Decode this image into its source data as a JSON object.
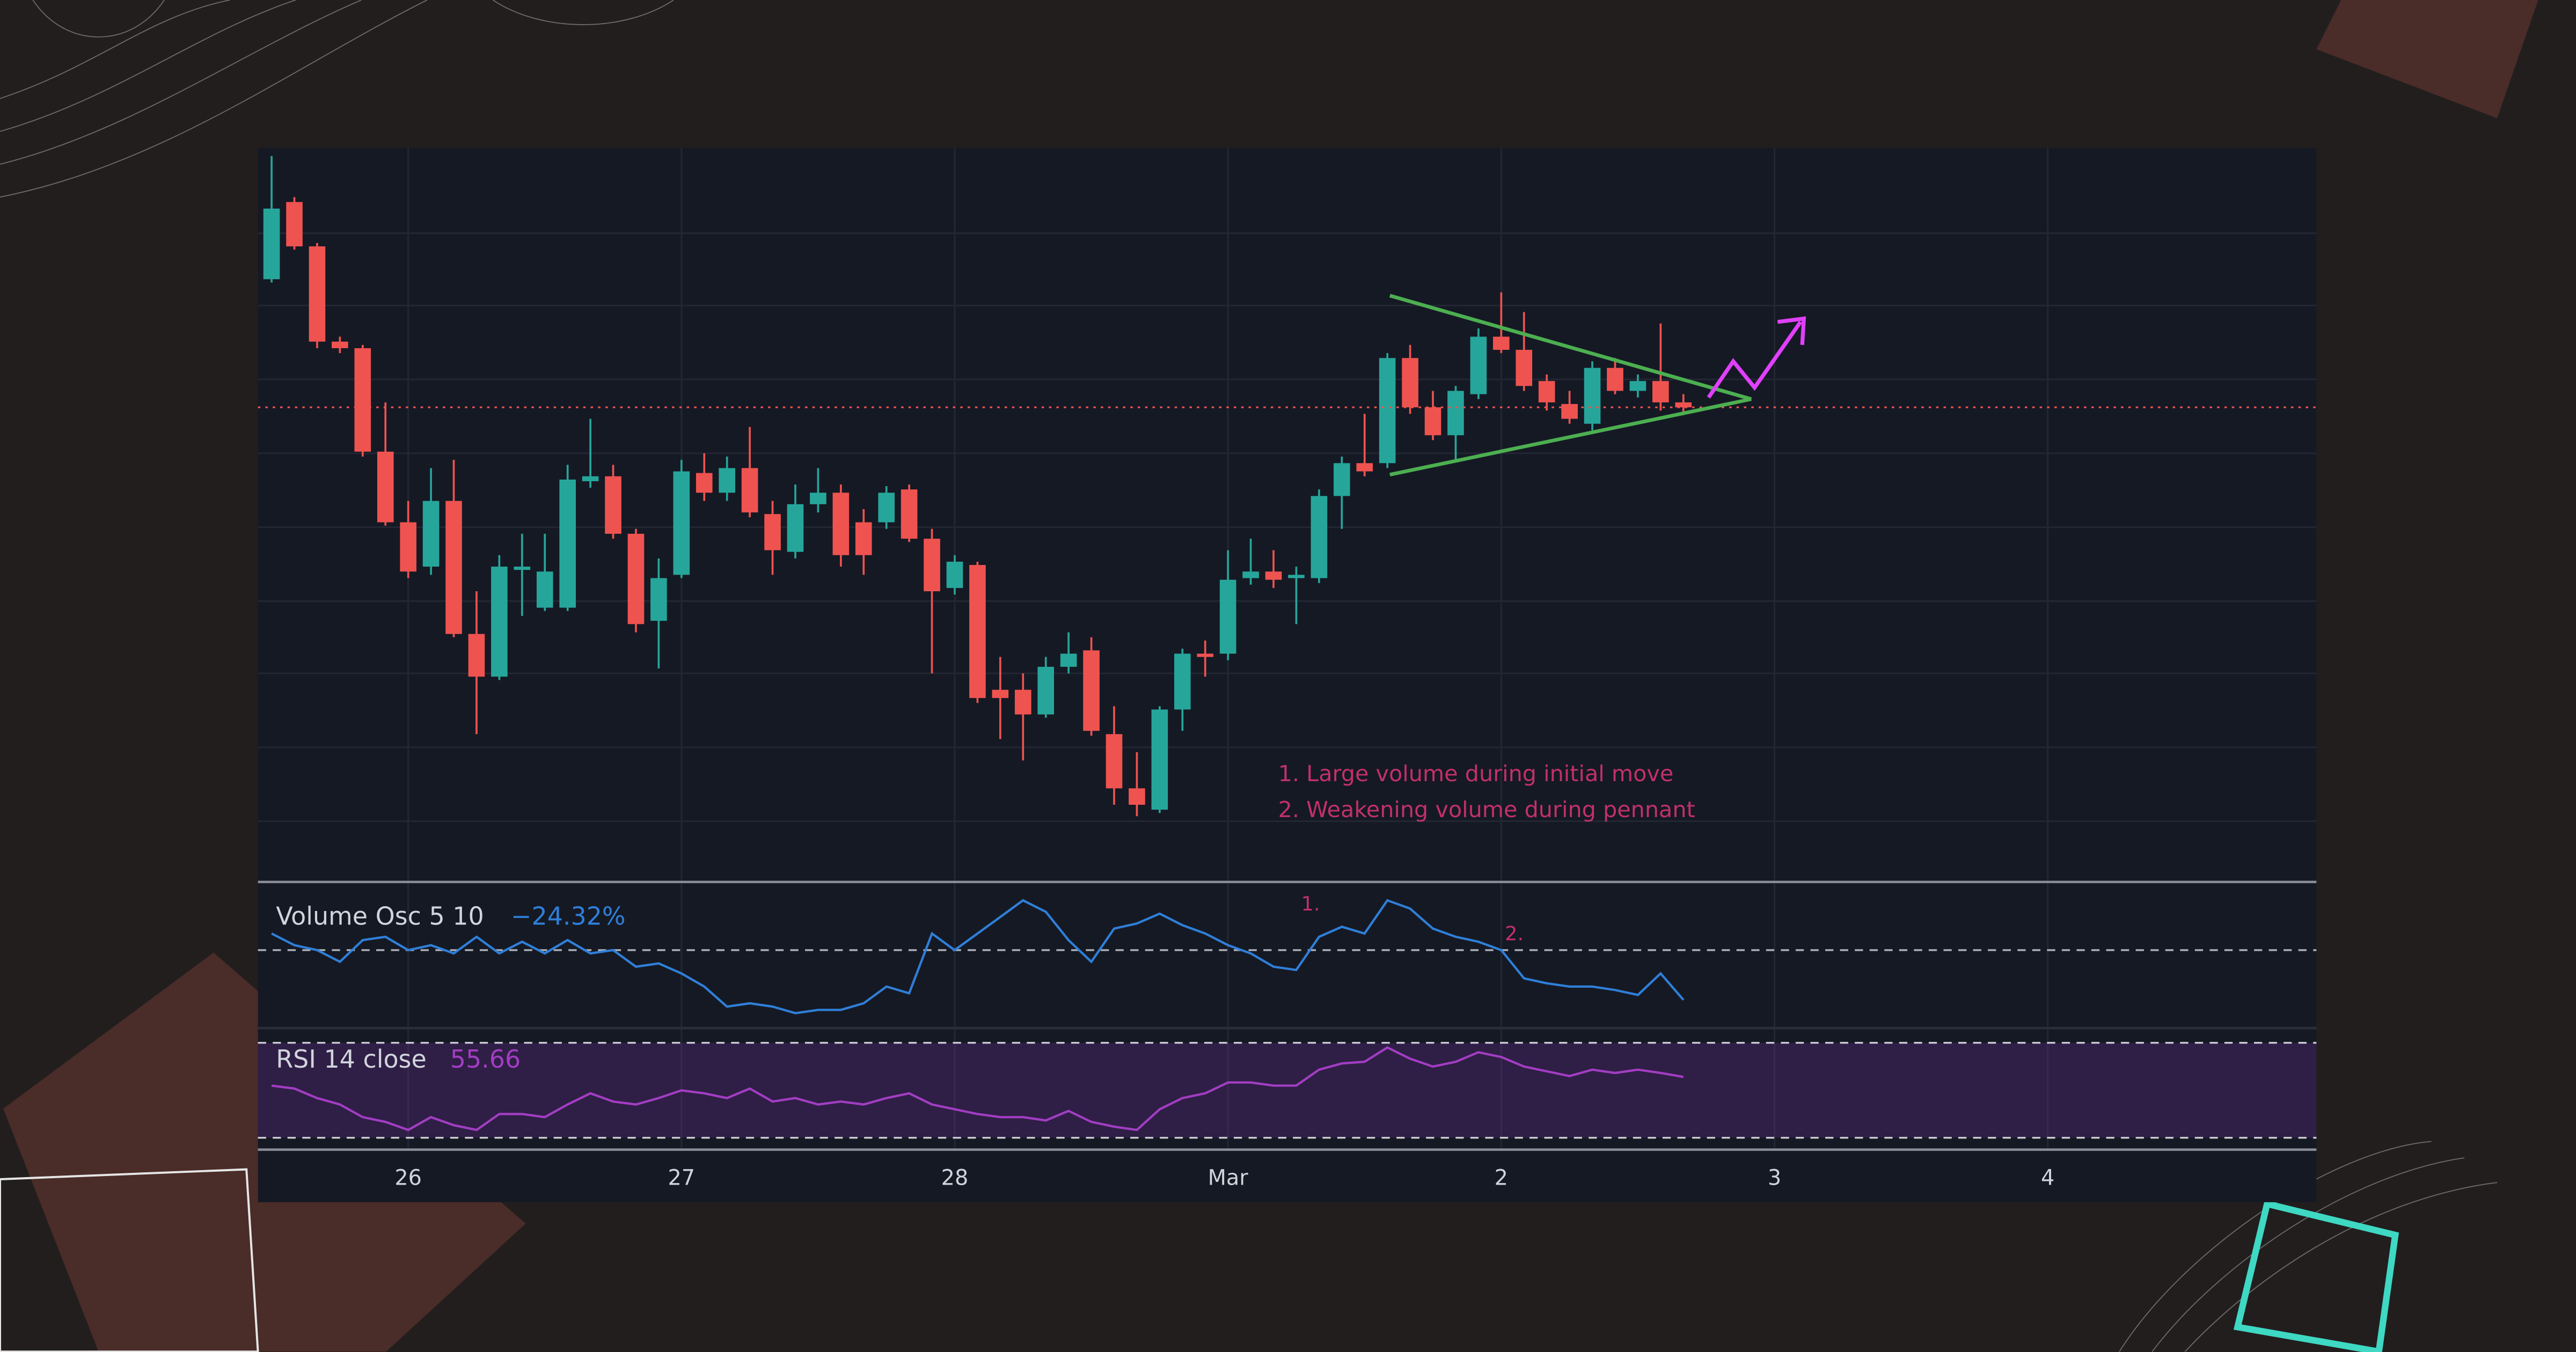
{
  "chart_data": [
    {
      "type": "candlestick",
      "open": [
        367,
        414,
        387,
        329,
        325,
        262,
        219,
        192,
        232,
        151,
        125,
        190,
        167,
        167,
        244,
        247,
        212,
        159,
        187,
        249,
        237,
        252,
        224,
        201,
        230,
        237,
        219,
        219,
        239,
        209,
        179,
        193,
        117,
        117,
        102,
        131,
        141,
        90,
        57,
        44,
        105,
        139,
        139,
        185,
        189,
        185,
        185,
        235,
        255,
        255,
        319,
        289,
        272,
        297,
        332,
        324,
        305,
        291,
        279,
        313,
        299,
        305,
        292
      ],
      "high": [
        442,
        417,
        389,
        332,
        327,
        292,
        232,
        252,
        257,
        177,
        199,
        212,
        212,
        254,
        282,
        254,
        215,
        197,
        257,
        261,
        259,
        277,
        232,
        242,
        252,
        242,
        227,
        241,
        242,
        215,
        199,
        195,
        137,
        127,
        137,
        152,
        149,
        107,
        79,
        107,
        142,
        147,
        202,
        209,
        202,
        192,
        239,
        259,
        285,
        322,
        327,
        299,
        302,
        337,
        359,
        347,
        309,
        299,
        317,
        319,
        309,
        340,
        297
      ],
      "low": [
        365,
        385,
        325,
        322,
        259,
        217,
        185,
        187,
        149,
        90,
        123,
        162,
        165,
        165,
        240,
        209,
        152,
        130,
        185,
        232,
        232,
        222,
        187,
        197,
        225,
        192,
        187,
        215,
        207,
        127,
        175,
        109,
        87,
        74,
        100,
        127,
        89,
        47,
        40,
        42,
        92,
        125,
        135,
        181,
        179,
        157,
        182,
        215,
        247,
        252,
        285,
        269,
        257,
        294,
        322,
        299,
        287,
        279,
        275,
        297,
        295,
        287,
        285
      ],
      "close": [
        410,
        387,
        329,
        325,
        262,
        219,
        189,
        232,
        151,
        125,
        192,
        192,
        189,
        245,
        247,
        212,
        157,
        185,
        250,
        237,
        252,
        225,
        202,
        230,
        237,
        199,
        199,
        237,
        209,
        177,
        195,
        112,
        112,
        102,
        131,
        139,
        92,
        57,
        47,
        105,
        139,
        137,
        184,
        189,
        184,
        187,
        235,
        255,
        250,
        319,
        289,
        272,
        299,
        332,
        324,
        302,
        292,
        282,
        313,
        299,
        305,
        292,
        289
      ],
      "xlim": [
        -0.6,
        89.8
      ],
      "xticks": [
        {
          "value": 6,
          "label": "26"
        },
        {
          "value": 18,
          "label": "27"
        },
        {
          "value": 30,
          "label": "28"
        },
        {
          "value": 42,
          "label": "Mar"
        },
        {
          "value": 54,
          "label": "2"
        },
        {
          "value": 66,
          "label": "3"
        },
        {
          "value": 78,
          "label": "4"
        }
      ],
      "ylim": [
        0,
        447
      ],
      "up_color": "#26a69a",
      "down_color": "#ef5350",
      "annotations": [
        "1. Large volume during initial move",
        "2. Weakening volume during pennant"
      ]
    },
    {
      "type": "line",
      "title": "Volume Osc 5 10",
      "values": [
        8.1,
        2.4,
        0,
        -5.7,
        4.9,
        6.5,
        0,
        2.4,
        -1.6,
        6.5,
        -1.6,
        4.1,
        -1.6,
        4.9,
        -1.6,
        0,
        -8.1,
        -6.5,
        -11.4,
        -17.8,
        -27.6,
        -26,
        -27.6,
        -30.8,
        -29.2,
        -29.2,
        -26,
        -17.8,
        -21.1,
        8.1,
        0,
        8.1,
        16.2,
        24.3,
        18.7,
        4.9,
        -5.7,
        10.5,
        13,
        17.8,
        12.2,
        8.1,
        2.4,
        -1.6,
        -8.1,
        -9.7,
        6.5,
        11.4,
        8.1,
        24.3,
        20.3,
        10.5,
        6.5,
        4.1,
        0,
        -13.8,
        -16.2,
        -17.8,
        -17.8,
        -19.5,
        -21.9,
        -11.4,
        -24.32
      ],
      "value_label": "−24.32%",
      "color": "#2f7fd8",
      "ylim": [
        -38.1,
        33.3
      ],
      "hlines": [
        0
      ],
      "annotations": [
        "1.",
        "2."
      ]
    },
    {
      "type": "line",
      "title": "RSI 14 close",
      "values": [
        52,
        50.7,
        46.7,
        44,
        38.7,
        36.7,
        33.3,
        38.7,
        35.3,
        33.3,
        40,
        40,
        38.7,
        44,
        48.7,
        45.3,
        44,
        46.7,
        50,
        48.7,
        46.7,
        50.7,
        45.3,
        46.7,
        44,
        45.3,
        44,
        46.7,
        48.7,
        44,
        42,
        40,
        38.7,
        38.7,
        37.3,
        41.3,
        36.7,
        34.7,
        33.3,
        42,
        46.7,
        48.7,
        53.3,
        53.3,
        52,
        52,
        58.7,
        61.3,
        62,
        68,
        63.3,
        60,
        62,
        66,
        64,
        60,
        58,
        56,
        58.7,
        57.3,
        58.7,
        57.3,
        55.66
      ],
      "color": "#a23dc3",
      "ylim": [
        25,
        75.5
      ],
      "band": [
        30,
        70
      ]
    }
  ]
}
